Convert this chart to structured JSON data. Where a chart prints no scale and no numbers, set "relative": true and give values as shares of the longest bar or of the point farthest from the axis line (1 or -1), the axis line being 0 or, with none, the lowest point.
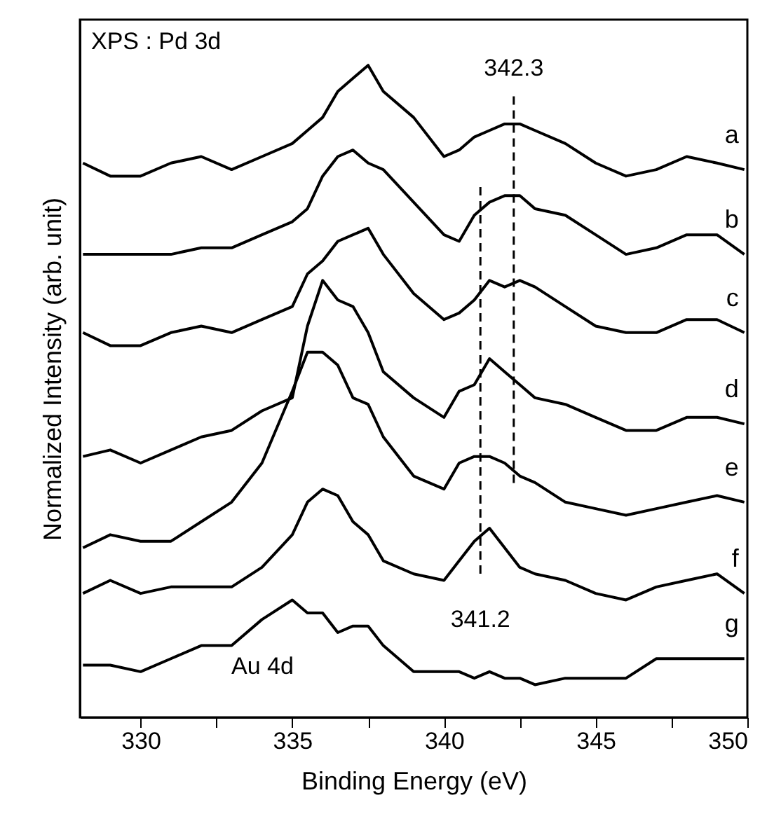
{
  "chart_data": {
    "type": "line",
    "relative": true,
    "xlabel": "Binding Energy (eV)",
    "ylabel": "Normalized Intensity (arb. unit)",
    "x": [
      328.1,
      329,
      330,
      331,
      332,
      333,
      334,
      335,
      335.5,
      336,
      336.5,
      337,
      337.5,
      338,
      339,
      340,
      340.5,
      341,
      341.5,
      342,
      342.5,
      343,
      344,
      345,
      346,
      347,
      348,
      349,
      349.9
    ],
    "xlim": [
      328,
      350
    ],
    "xticks": [
      330,
      {
        "value": 332.5,
        "label": null
      },
      335,
      {
        "value": 337.5,
        "label": null
      },
      340,
      {
        "value": 342.5,
        "label": null
      },
      345,
      {
        "value": 347.5,
        "label": null
      },
      350
    ],
    "series": [
      {
        "name": "a",
        "color": "#000000",
        "values": [
          0.85,
          0.83,
          0.83,
          0.85,
          0.86,
          0.84,
          0.86,
          0.88,
          0.9,
          0.92,
          0.96,
          0.98,
          1.0,
          0.96,
          0.92,
          0.86,
          0.87,
          0.89,
          0.9,
          0.91,
          0.91,
          0.9,
          0.88,
          0.85,
          0.83,
          0.84,
          0.86,
          0.85,
          0.84
        ]
      },
      {
        "name": "b",
        "color": "#000000",
        "values": [
          0.71,
          0.71,
          0.71,
          0.71,
          0.72,
          0.72,
          0.74,
          0.76,
          0.78,
          0.83,
          0.86,
          0.87,
          0.85,
          0.84,
          0.79,
          0.74,
          0.73,
          0.77,
          0.79,
          0.8,
          0.8,
          0.78,
          0.77,
          0.74,
          0.71,
          0.72,
          0.74,
          0.74,
          0.71
        ]
      },
      {
        "name": "c",
        "color": "#000000",
        "values": [
          0.59,
          0.57,
          0.57,
          0.59,
          0.6,
          0.59,
          0.61,
          0.63,
          0.68,
          0.7,
          0.73,
          0.74,
          0.75,
          0.71,
          0.65,
          0.61,
          0.62,
          0.64,
          0.67,
          0.66,
          0.67,
          0.66,
          0.63,
          0.6,
          0.59,
          0.59,
          0.61,
          0.61,
          0.59
        ]
      },
      {
        "name": "d",
        "color": "#000000",
        "values": [
          0.4,
          0.41,
          0.39,
          0.41,
          0.43,
          0.44,
          0.47,
          0.49,
          0.6,
          0.67,
          0.64,
          0.63,
          0.59,
          0.53,
          0.49,
          0.46,
          0.5,
          0.51,
          0.55,
          0.53,
          0.51,
          0.49,
          0.48,
          0.46,
          0.44,
          0.44,
          0.46,
          0.46,
          0.45
        ]
      },
      {
        "name": "e",
        "color": "#000000",
        "values": [
          0.26,
          0.28,
          0.27,
          0.27,
          0.3,
          0.33,
          0.39,
          0.5,
          0.56,
          0.56,
          0.54,
          0.49,
          0.48,
          0.43,
          0.37,
          0.35,
          0.39,
          0.4,
          0.4,
          0.39,
          0.37,
          0.36,
          0.33,
          0.32,
          0.31,
          0.32,
          0.33,
          0.34,
          0.33
        ]
      },
      {
        "name": "f",
        "color": "#000000",
        "values": [
          0.19,
          0.21,
          0.19,
          0.2,
          0.2,
          0.2,
          0.23,
          0.28,
          0.33,
          0.35,
          0.34,
          0.3,
          0.28,
          0.24,
          0.22,
          0.21,
          0.24,
          0.27,
          0.29,
          0.26,
          0.23,
          0.22,
          0.21,
          0.19,
          0.18,
          0.2,
          0.21,
          0.22,
          0.19
        ]
      },
      {
        "name": "g",
        "color": "#000000",
        "values": [
          0.08,
          0.08,
          0.07,
          0.09,
          0.11,
          0.11,
          0.15,
          0.18,
          0.16,
          0.16,
          0.13,
          0.14,
          0.14,
          0.11,
          0.07,
          0.07,
          0.07,
          0.06,
          0.07,
          0.06,
          0.06,
          0.05,
          0.06,
          0.06,
          0.06,
          0.09,
          0.09,
          0.09,
          0.09
        ]
      }
    ],
    "ref_lines": [
      {
        "axis": "x",
        "value": 342.3,
        "label": "342.3",
        "color": "#000000",
        "line_style": "dashed"
      },
      {
        "axis": "x",
        "value": 341.2,
        "label": "341.2",
        "color": "#000000",
        "line_style": "dashed"
      }
    ],
    "annotations": [
      "XPS : Pd 3d",
      "Au 4d"
    ],
    "marker": "none",
    "line_style": "solid",
    "grid": false
  }
}
